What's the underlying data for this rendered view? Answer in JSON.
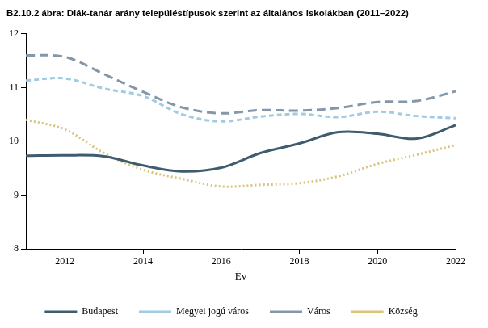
{
  "chart_data": {
    "type": "line",
    "title": "B2.10.2 ábra: Diák-tanár arány településtípusok szerint az általános iskolákban (2011–2022)",
    "x_label": "Év",
    "x": [
      2011,
      2012,
      2013,
      2014,
      2015,
      2016,
      2017,
      2018,
      2019,
      2020,
      2021,
      2022
    ],
    "xlim": [
      2011,
      2022
    ],
    "xticks": [
      2012,
      2014,
      2016,
      2018,
      2020,
      2022
    ],
    "ylim": [
      8,
      12
    ],
    "yticks": [
      8,
      9,
      10,
      11,
      12
    ],
    "grid": false,
    "legend": "bottom",
    "series": [
      {
        "name": "Budapest",
        "color": "#3f5b6e",
        "line_style": "solid",
        "values": [
          9.73,
          9.74,
          9.72,
          9.55,
          9.44,
          9.51,
          9.78,
          9.96,
          10.17,
          10.14,
          10.05,
          10.3
        ]
      },
      {
        "name": "Megyei jogú város",
        "color": "#9fcbe3",
        "line_style": "dashed",
        "values": [
          11.13,
          11.17,
          10.98,
          10.84,
          10.5,
          10.37,
          10.46,
          10.51,
          10.45,
          10.55,
          10.47,
          10.43
        ]
      },
      {
        "name": "Város",
        "color": "#8496a7",
        "line_style": "longdash",
        "values": [
          11.6,
          11.57,
          11.25,
          10.92,
          10.63,
          10.52,
          10.58,
          10.57,
          10.62,
          10.73,
          10.75,
          10.93
        ]
      },
      {
        "name": "Község",
        "color": "#d8c57c",
        "line_style": "dotted",
        "values": [
          10.4,
          10.22,
          9.78,
          9.47,
          9.3,
          9.16,
          9.19,
          9.22,
          9.35,
          9.58,
          9.75,
          9.93
        ]
      }
    ]
  }
}
